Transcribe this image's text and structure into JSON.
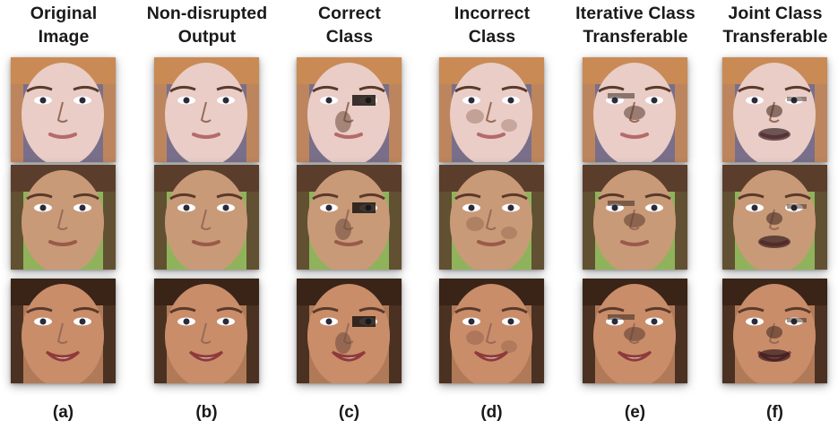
{
  "columns": [
    {
      "title_line1": "Original",
      "title_line2": "Image",
      "caption": "(a)"
    },
    {
      "title_line1": "Non-disrupted",
      "title_line2": "Output",
      "caption": "(b)"
    },
    {
      "title_line1": "Correct",
      "title_line2": "Class",
      "caption": "(c)"
    },
    {
      "title_line1": "Incorrect",
      "title_line2": "Class",
      "caption": "(d)"
    },
    {
      "title_line1": "Iterative Class",
      "title_line2": "Transferable",
      "caption": "(e)"
    },
    {
      "title_line1": "Joint  Class",
      "title_line2": "Transferable",
      "caption": "(f)"
    }
  ],
  "rows": [
    {
      "subject": "woman-auburn-hair",
      "skin": "#e9cdc6",
      "hair": "#c98a55",
      "bg": "#7a6f8a",
      "lips": "#b56a6a"
    },
    {
      "subject": "man-short-hair",
      "skin": "#c99a78",
      "hair": "#5a3e2b",
      "bg": "#8fb35a",
      "lips": "#9a5a4a"
    },
    {
      "subject": "woman-dark-hair-smiling",
      "skin": "#c98d6a",
      "hair": "#3a2418",
      "bg": "#b07a58",
      "lips": "#8e3a3a"
    }
  ],
  "colors": {
    "text": "#1a1a1a",
    "background": "#ffffff"
  }
}
